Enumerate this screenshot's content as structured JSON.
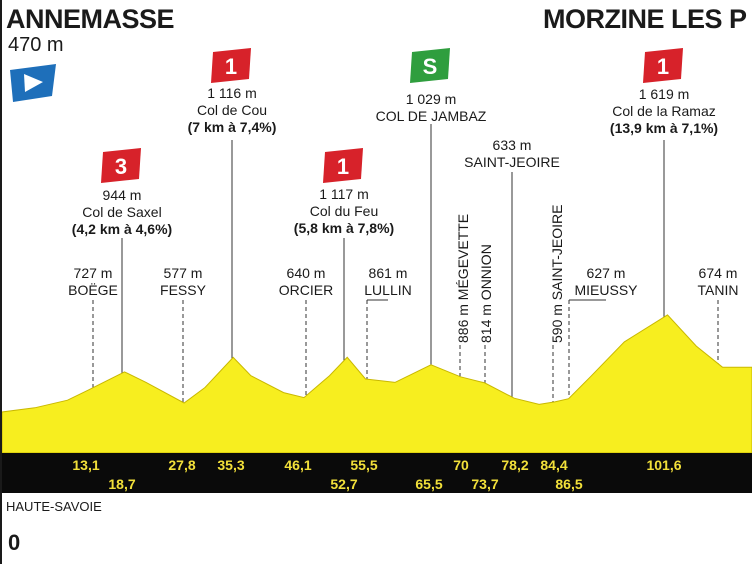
{
  "start": {
    "town": "ANNEMASSE",
    "altitude": "470 m"
  },
  "finish": {
    "town": "MORZINE LES P"
  },
  "region": "HAUTE-SAVOIE",
  "origin_km": "0",
  "climbs": [
    {
      "cat": "3",
      "alt": "944 m",
      "name": "Col de Saxel",
      "detail": "(4,2 km à 4,6%)"
    },
    {
      "cat": "1",
      "alt": "1 116 m",
      "name": "Col de Cou",
      "detail": "(7 km à 7,4%)"
    },
    {
      "cat": "1",
      "alt": "1 117 m",
      "name": "Col du Feu",
      "detail": "(5,8 km à 7,8%)"
    },
    {
      "cat": "S",
      "alt": "1 029 m",
      "name": "COL DE JAMBAZ",
      "detail": ""
    },
    {
      "cat": "1",
      "alt": "1 619 m",
      "name": "Col de la Ramaz",
      "detail": "(13,9 km à 7,1%)"
    }
  ],
  "places": [
    {
      "alt": "727 m",
      "name": "BOËGE"
    },
    {
      "alt": "577 m",
      "name": "FESSY"
    },
    {
      "alt": "640 m",
      "name": "ORCIER"
    },
    {
      "alt": "861 m",
      "name": "LULLIN"
    },
    {
      "alt": "633 m",
      "name": "SAINT-JEOIRE"
    },
    {
      "alt": "627 m",
      "name": "MIEUSSY"
    },
    {
      "alt": "674 m",
      "name": "TANIN"
    }
  ],
  "vertical_places": [
    {
      "text": "886 m MÉGEVETTE"
    },
    {
      "text": "814 m ONNION"
    },
    {
      "text": "590 m SAINT-JEOIRE"
    }
  ],
  "colors": {
    "profile": "#f7ee1f",
    "band": "#0a0a0a",
    "km_text": "#f2e03a",
    "cat_red": "#d7222a",
    "sprint_green": "#2f9e3e",
    "start_blue": "#1e6fba"
  },
  "chart_data": {
    "type": "area",
    "title": "",
    "xlabel": "",
    "ylabel": "",
    "km_markers": [
      "13,1",
      "18,7",
      "27,8",
      "35,3",
      "46,1",
      "52,7",
      "55,5",
      "65,5",
      "70",
      "73,7",
      "78,2",
      "84,4",
      "86,5",
      "101,6"
    ],
    "profile": {
      "x": [
        0,
        5,
        10,
        13.1,
        18.7,
        22,
        27.8,
        31,
        35.3,
        38,
        43,
        46.1,
        50,
        52.7,
        55.5,
        60,
        65.5,
        70,
        73.7,
        78.2,
        82,
        84.4,
        86.5,
        90,
        95,
        101.6,
        106,
        110
      ],
      "y": [
        470,
        520,
        610,
        727,
        944,
        820,
        577,
        760,
        1116,
        900,
        700,
        640,
        900,
        1117,
        861,
        820,
        1029,
        886,
        814,
        633,
        560,
        590,
        627,
        900,
        1300,
        1619,
        1250,
        1000
      ]
    }
  }
}
